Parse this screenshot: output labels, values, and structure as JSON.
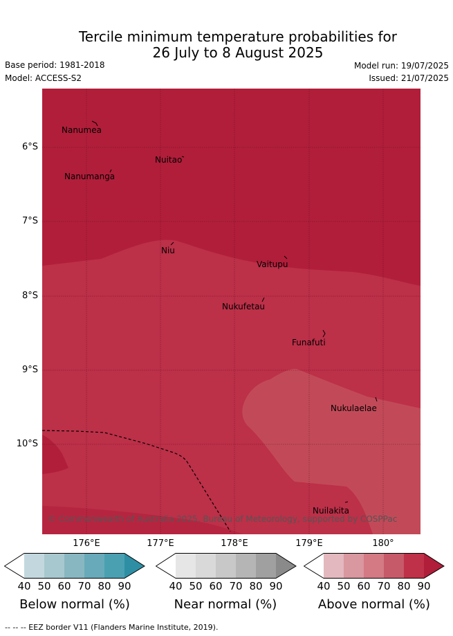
{
  "title": {
    "line1": "Tercile minimum temperature probabilities for",
    "line2": "26 July to 8 August 2025"
  },
  "meta": {
    "base_period": "Base period: 1981-2018",
    "model": "Model: ACCESS-S2",
    "model_run": "Model run: 19/07/2025",
    "issued": "Issued: 21/07/2025"
  },
  "map": {
    "latitude_labels": [
      "6°S",
      "7°S",
      "8°S",
      "9°S",
      "10°S"
    ],
    "longitude_labels": [
      "176°E",
      "177°E",
      "178°E",
      "179°E",
      "180°"
    ],
    "islands": [
      "Nanumea",
      "Nuitao",
      "Nanumanga",
      "Niu",
      "Vaitupu",
      "Nukufetau",
      "Funafuti",
      "Nukulaelae",
      "Nuilakita"
    ],
    "copyright": "© Commonwealth of Australia 2025, Bureau of Meteorology, supported by COSPPac",
    "colors": {
      "above_90": "#b11e3a",
      "above_80": "#bc3048",
      "above_70": "#c24a58"
    }
  },
  "colorbars": [
    {
      "title": "Below normal (%)",
      "ticks": [
        "40",
        "50",
        "60",
        "70",
        "80",
        "90"
      ],
      "colors": [
        "#ffffff",
        "#c3d8de",
        "#a8c8cf",
        "#88b7c2",
        "#68aab9",
        "#4aa0b1",
        "#2e8fa4"
      ]
    },
    {
      "title": "Near normal (%)",
      "ticks": [
        "40",
        "50",
        "60",
        "70",
        "80",
        "90"
      ],
      "colors": [
        "#ffffff",
        "#e6e6e6",
        "#d9d9d9",
        "#c8c8c8",
        "#b5b5b5",
        "#a0a0a0",
        "#8a8a8a"
      ]
    },
    {
      "title": "Above normal (%)",
      "ticks": [
        "40",
        "50",
        "60",
        "70",
        "80",
        "90"
      ],
      "colors": [
        "#ffffff",
        "#e3b8be",
        "#d9979f",
        "#d37a84",
        "#c65a69",
        "#be3148",
        "#b11e3a"
      ]
    }
  ],
  "footnote": "--  --  -- EEZ border V11 (Flanders Marine Institute, 2019)."
}
